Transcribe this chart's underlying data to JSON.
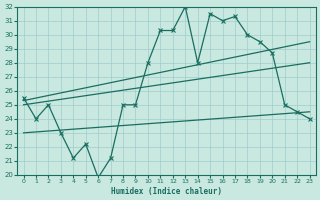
{
  "xlabel": "Humidex (Indice chaleur)",
  "xlim": [
    -0.5,
    23.5
  ],
  "ylim": [
    20,
    32
  ],
  "xticks": [
    0,
    1,
    2,
    3,
    4,
    5,
    6,
    7,
    8,
    9,
    10,
    11,
    12,
    13,
    14,
    15,
    16,
    17,
    18,
    19,
    20,
    21,
    22,
    23
  ],
  "yticks": [
    20,
    21,
    22,
    23,
    24,
    25,
    26,
    27,
    28,
    29,
    30,
    31,
    32
  ],
  "bg_color": "#c8e8e0",
  "line_color": "#1a6e60",
  "grid_color": "#a0cccc",
  "line1_x": [
    0,
    1,
    2,
    3,
    4,
    5,
    6,
    7,
    8,
    9,
    10,
    11,
    12,
    13,
    14,
    15,
    16,
    17,
    18,
    19,
    20,
    21,
    22,
    23
  ],
  "line1_y": [
    25.5,
    24.0,
    25.0,
    23.0,
    21.2,
    22.2,
    19.8,
    21.2,
    25.0,
    25.0,
    28.0,
    30.3,
    30.3,
    32.0,
    28.0,
    31.5,
    31.0,
    31.3,
    30.0,
    29.5,
    28.7,
    25.0,
    24.5,
    24.0
  ],
  "line2_x": [
    0,
    23
  ],
  "line2_y": [
    25.3,
    29.5
  ],
  "line3_x": [
    0,
    23
  ],
  "line3_y": [
    25.0,
    28.0
  ],
  "line4_x": [
    0,
    23
  ],
  "line4_y": [
    23.0,
    24.5
  ]
}
